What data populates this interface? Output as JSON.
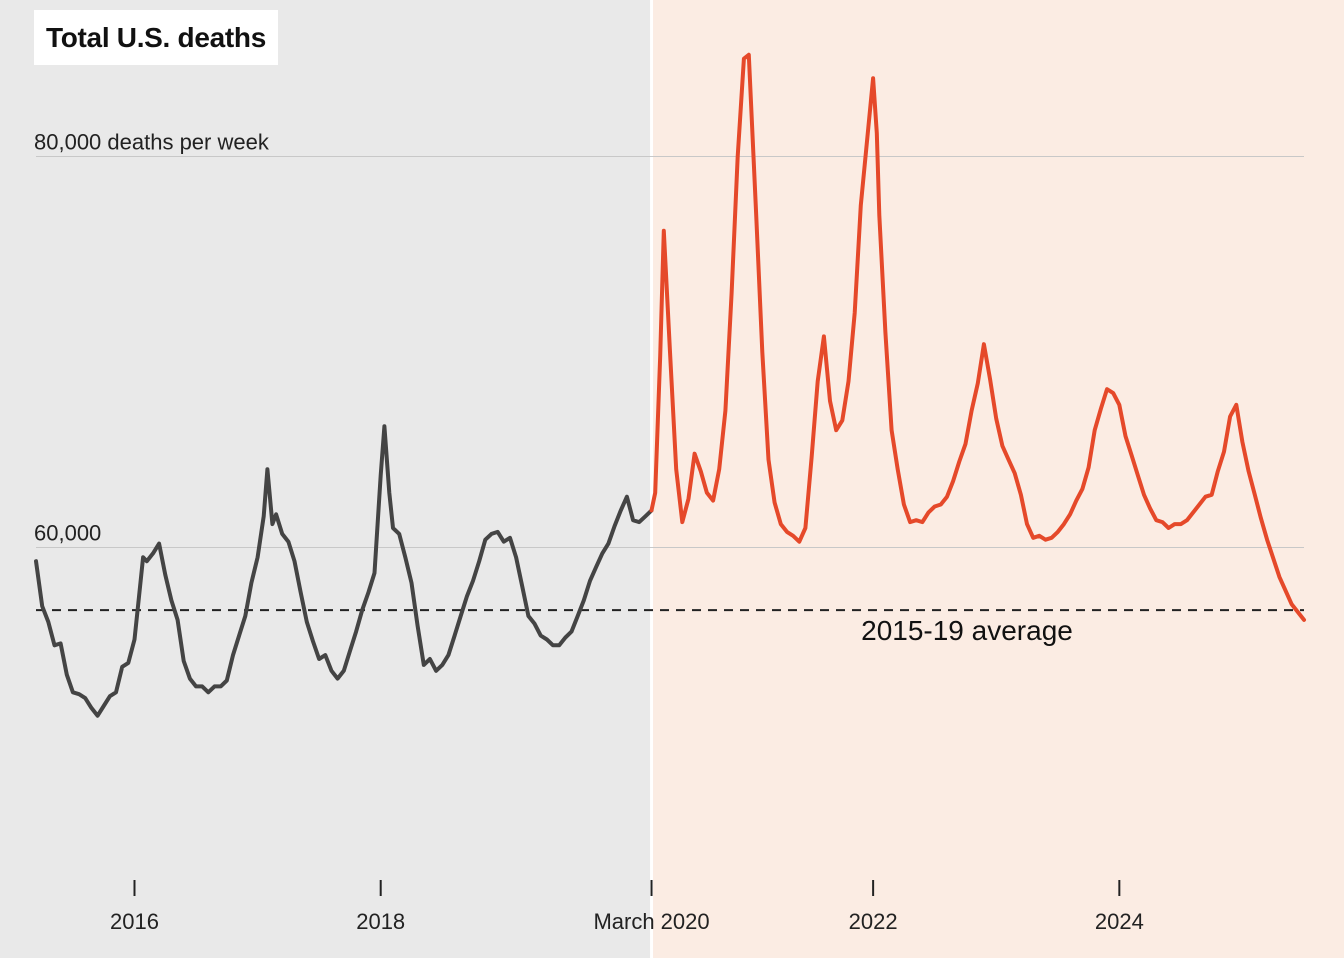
{
  "chart_data": {
    "type": "line",
    "title": "Total U.S. deaths",
    "y_unit_label": "80,000 deaths per week",
    "y_tick_labels": [
      "60,000"
    ],
    "reference_line": {
      "label": "2015-19 average",
      "value": 56800
    },
    "x_tick_labels": [
      "2016",
      "2018",
      "March 2020",
      "2022",
      "2024"
    ],
    "x_ticks": [
      2016,
      2018,
      2020.2,
      2022,
      2024
    ],
    "ylim": [
      43000,
      88000
    ],
    "xlim": [
      2015.2,
      2025.5
    ],
    "grid": true,
    "highlight_start": 2020.2,
    "colors": {
      "pre": "#444444",
      "post": "#e5492a",
      "pre_background": "#e9e9e9",
      "post_background": "#fbece3",
      "grid": "#c8c8c8",
      "reference": "#222222"
    },
    "series": [
      {
        "segment": "before March 2020",
        "points": [
          [
            2015.2,
            59300
          ],
          [
            2015.25,
            57000
          ],
          [
            2015.3,
            56200
          ],
          [
            2015.35,
            55000
          ],
          [
            2015.4,
            55100
          ],
          [
            2015.45,
            53500
          ],
          [
            2015.5,
            52600
          ],
          [
            2015.55,
            52500
          ],
          [
            2015.6,
            52300
          ],
          [
            2015.65,
            51800
          ],
          [
            2015.7,
            51400
          ],
          [
            2015.75,
            51900
          ],
          [
            2015.8,
            52400
          ],
          [
            2015.85,
            52600
          ],
          [
            2015.9,
            53900
          ],
          [
            2015.95,
            54100
          ],
          [
            2016.0,
            55300
          ],
          [
            2016.03,
            57100
          ],
          [
            2016.07,
            59500
          ],
          [
            2016.1,
            59300
          ],
          [
            2016.15,
            59700
          ],
          [
            2016.2,
            60200
          ],
          [
            2016.25,
            58600
          ],
          [
            2016.3,
            57300
          ],
          [
            2016.35,
            56300
          ],
          [
            2016.4,
            54200
          ],
          [
            2016.45,
            53300
          ],
          [
            2016.5,
            52900
          ],
          [
            2016.55,
            52900
          ],
          [
            2016.6,
            52600
          ],
          [
            2016.65,
            52900
          ],
          [
            2016.7,
            52900
          ],
          [
            2016.75,
            53200
          ],
          [
            2016.8,
            54500
          ],
          [
            2016.85,
            55500
          ],
          [
            2016.9,
            56500
          ],
          [
            2016.95,
            58200
          ],
          [
            2017.0,
            59500
          ],
          [
            2017.05,
            61600
          ],
          [
            2017.08,
            64000
          ],
          [
            2017.12,
            61200
          ],
          [
            2017.15,
            61700
          ],
          [
            2017.2,
            60700
          ],
          [
            2017.25,
            60300
          ],
          [
            2017.3,
            59300
          ],
          [
            2017.35,
            57700
          ],
          [
            2017.4,
            56200
          ],
          [
            2017.45,
            55200
          ],
          [
            2017.5,
            54300
          ],
          [
            2017.55,
            54500
          ],
          [
            2017.6,
            53700
          ],
          [
            2017.65,
            53300
          ],
          [
            2017.7,
            53700
          ],
          [
            2017.75,
            54700
          ],
          [
            2017.8,
            55700
          ],
          [
            2017.85,
            56800
          ],
          [
            2017.9,
            57700
          ],
          [
            2017.95,
            58700
          ],
          [
            2018.0,
            63700
          ],
          [
            2018.03,
            66200
          ],
          [
            2018.07,
            62800
          ],
          [
            2018.1,
            61000
          ],
          [
            2018.15,
            60700
          ],
          [
            2018.2,
            59500
          ],
          [
            2018.25,
            58200
          ],
          [
            2018.3,
            56000
          ],
          [
            2018.35,
            54000
          ],
          [
            2018.4,
            54300
          ],
          [
            2018.45,
            53700
          ],
          [
            2018.5,
            54000
          ],
          [
            2018.55,
            54500
          ],
          [
            2018.6,
            55500
          ],
          [
            2018.65,
            56500
          ],
          [
            2018.7,
            57500
          ],
          [
            2018.75,
            58300
          ],
          [
            2018.8,
            59300
          ],
          [
            2018.85,
            60400
          ],
          [
            2018.9,
            60700
          ],
          [
            2018.95,
            60800
          ],
          [
            2019.0,
            60300
          ],
          [
            2019.05,
            60500
          ],
          [
            2019.1,
            59500
          ],
          [
            2019.15,
            58000
          ],
          [
            2019.2,
            56500
          ],
          [
            2019.25,
            56100
          ],
          [
            2019.3,
            55500
          ],
          [
            2019.35,
            55300
          ],
          [
            2019.4,
            55000
          ],
          [
            2019.45,
            55000
          ],
          [
            2019.5,
            55400
          ],
          [
            2019.55,
            55700
          ],
          [
            2019.6,
            56500
          ],
          [
            2019.65,
            57300
          ],
          [
            2019.7,
            58300
          ],
          [
            2019.75,
            59000
          ],
          [
            2019.8,
            59700
          ],
          [
            2019.85,
            60200
          ],
          [
            2019.9,
            61100
          ],
          [
            2019.95,
            61900
          ],
          [
            2020.0,
            62600
          ],
          [
            2020.05,
            61400
          ],
          [
            2020.1,
            61300
          ],
          [
            2020.15,
            61600
          ],
          [
            2020.2,
            61900
          ]
        ]
      },
      {
        "segment": "March 2020 onward",
        "points": [
          [
            2020.2,
            61900
          ],
          [
            2020.23,
            62800
          ],
          [
            2020.27,
            69800
          ],
          [
            2020.3,
            76200
          ],
          [
            2020.35,
            70000
          ],
          [
            2020.4,
            64000
          ],
          [
            2020.45,
            61300
          ],
          [
            2020.5,
            62500
          ],
          [
            2020.55,
            64800
          ],
          [
            2020.6,
            63900
          ],
          [
            2020.65,
            62800
          ],
          [
            2020.7,
            62400
          ],
          [
            2020.75,
            64000
          ],
          [
            2020.8,
            67000
          ],
          [
            2020.85,
            73000
          ],
          [
            2020.9,
            80000
          ],
          [
            2020.95,
            85000
          ],
          [
            2020.99,
            85200
          ],
          [
            2021.05,
            77000
          ],
          [
            2021.1,
            70000
          ],
          [
            2021.15,
            64500
          ],
          [
            2021.2,
            62300
          ],
          [
            2021.25,
            61200
          ],
          [
            2021.3,
            60800
          ],
          [
            2021.35,
            60600
          ],
          [
            2021.4,
            60300
          ],
          [
            2021.45,
            61000
          ],
          [
            2021.5,
            64600
          ],
          [
            2021.55,
            68500
          ],
          [
            2021.6,
            70800
          ],
          [
            2021.65,
            67500
          ],
          [
            2021.7,
            66000
          ],
          [
            2021.75,
            66500
          ],
          [
            2021.8,
            68500
          ],
          [
            2021.85,
            72000
          ],
          [
            2021.9,
            77500
          ],
          [
            2022.0,
            84000
          ],
          [
            2022.03,
            81200
          ],
          [
            2022.05,
            77000
          ],
          [
            2022.1,
            71000
          ],
          [
            2022.15,
            66000
          ],
          [
            2022.2,
            64000
          ],
          [
            2022.25,
            62200
          ],
          [
            2022.3,
            61300
          ],
          [
            2022.35,
            61400
          ],
          [
            2022.4,
            61300
          ],
          [
            2022.45,
            61800
          ],
          [
            2022.5,
            62100
          ],
          [
            2022.55,
            62200
          ],
          [
            2022.6,
            62600
          ],
          [
            2022.65,
            63400
          ],
          [
            2022.7,
            64400
          ],
          [
            2022.75,
            65300
          ],
          [
            2022.8,
            67000
          ],
          [
            2022.85,
            68400
          ],
          [
            2022.9,
            70400
          ],
          [
            2022.95,
            68600
          ],
          [
            2023.0,
            66600
          ],
          [
            2023.05,
            65200
          ],
          [
            2023.1,
            64500
          ],
          [
            2023.15,
            63800
          ],
          [
            2023.2,
            62700
          ],
          [
            2023.25,
            61200
          ],
          [
            2023.3,
            60500
          ],
          [
            2023.35,
            60600
          ],
          [
            2023.4,
            60400
          ],
          [
            2023.45,
            60500
          ],
          [
            2023.5,
            60800
          ],
          [
            2023.55,
            61200
          ],
          [
            2023.6,
            61700
          ],
          [
            2023.65,
            62400
          ],
          [
            2023.7,
            63000
          ],
          [
            2023.75,
            64100
          ],
          [
            2023.8,
            66000
          ],
          [
            2023.85,
            67100
          ],
          [
            2023.9,
            68100
          ],
          [
            2023.95,
            67900
          ],
          [
            2024.0,
            67300
          ],
          [
            2024.05,
            65700
          ],
          [
            2024.1,
            64700
          ],
          [
            2024.15,
            63700
          ],
          [
            2024.2,
            62700
          ],
          [
            2024.25,
            62000
          ],
          [
            2024.3,
            61400
          ],
          [
            2024.35,
            61300
          ],
          [
            2024.4,
            61000
          ],
          [
            2024.45,
            61200
          ],
          [
            2024.5,
            61200
          ],
          [
            2024.55,
            61400
          ],
          [
            2024.6,
            61800
          ],
          [
            2024.65,
            62200
          ],
          [
            2024.7,
            62600
          ],
          [
            2024.75,
            62700
          ],
          [
            2024.8,
            63900
          ],
          [
            2024.85,
            64900
          ],
          [
            2024.9,
            66700
          ],
          [
            2024.95,
            67300
          ],
          [
            2025.0,
            65400
          ],
          [
            2025.05,
            63900
          ],
          [
            2025.1,
            62700
          ],
          [
            2025.15,
            61500
          ],
          [
            2025.2,
            60400
          ],
          [
            2025.3,
            58500
          ],
          [
            2025.4,
            57100
          ],
          [
            2025.5,
            56300
          ]
        ]
      }
    ]
  }
}
